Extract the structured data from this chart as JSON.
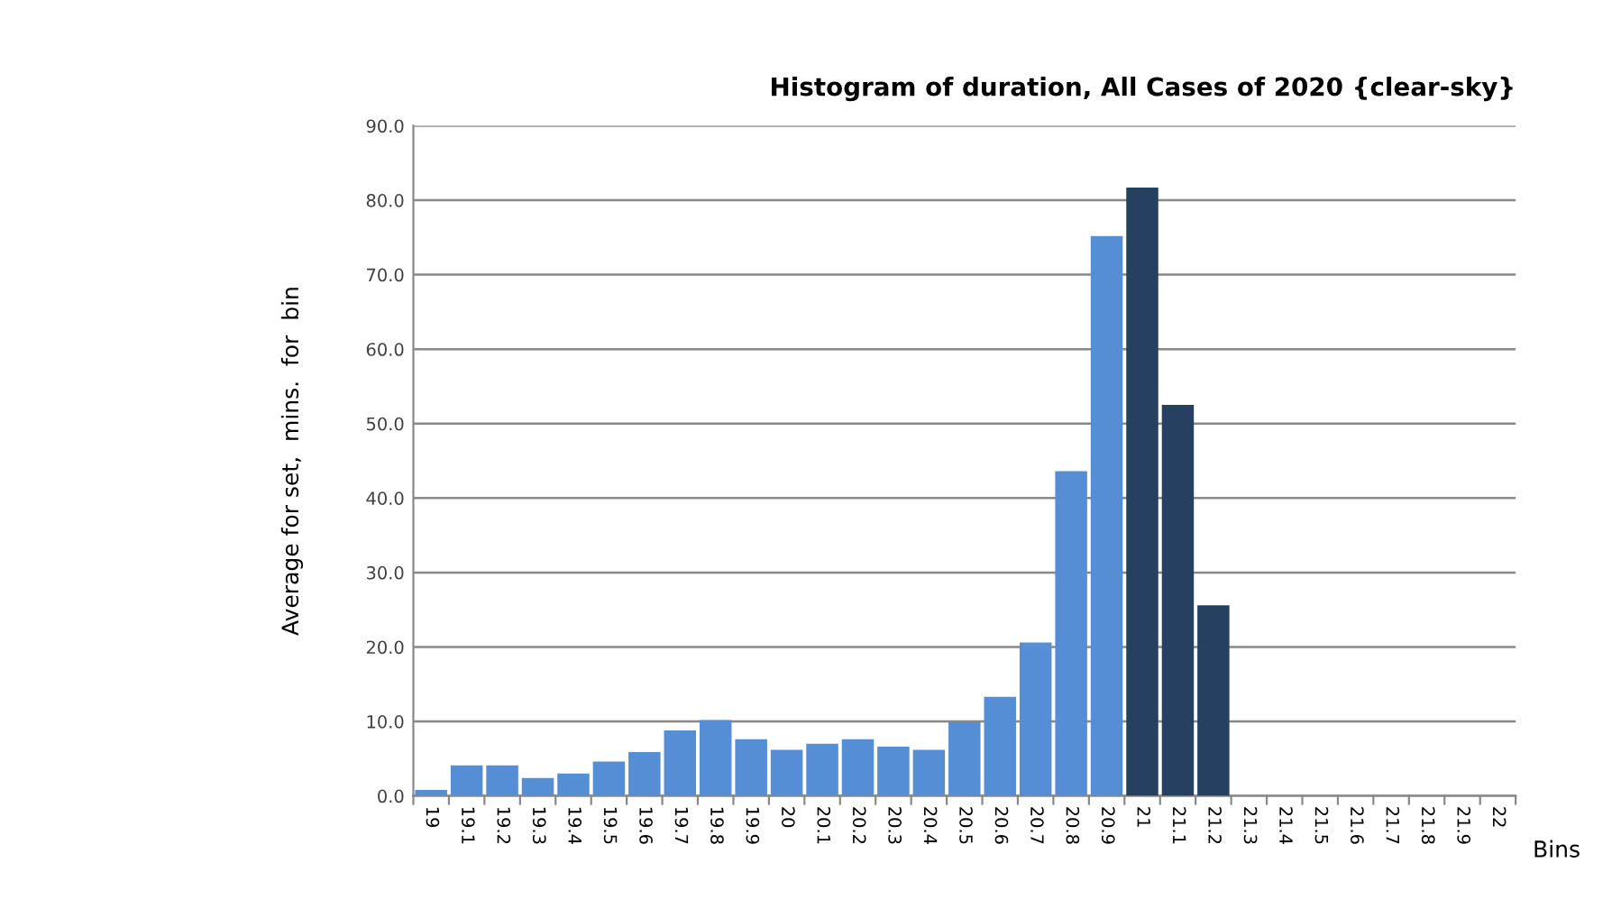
{
  "chart_data": {
    "type": "bar",
    "title": "Histogram of duration, All Cases of 2020 {clear-sky}",
    "xlabel": "Bins",
    "ylabel": "Average for set,  mins.  for  bin",
    "categories": [
      "19",
      "19.1",
      "19.2",
      "19.3",
      "19.4",
      "19.5",
      "19.6",
      "19.7",
      "19.8",
      "19.9",
      "20",
      "20.1",
      "20.2",
      "20.3",
      "20.4",
      "20.5",
      "20.6",
      "20.7",
      "20.8",
      "20.9",
      "21",
      "21.1",
      "21.2",
      "21.3",
      "21.4",
      "21.5",
      "21.6",
      "21.7",
      "21.8",
      "21.9",
      "22"
    ],
    "values": [
      0.8,
      4.1,
      4.1,
      2.4,
      3.0,
      4.6,
      5.9,
      8.8,
      10.2,
      7.6,
      6.2,
      7.0,
      7.6,
      6.6,
      6.2,
      9.9,
      13.3,
      20.6,
      43.6,
      75.2,
      81.7,
      52.5,
      25.6,
      0,
      0,
      0,
      0,
      0,
      0,
      0,
      0
    ],
    "colors": [
      "#558ed5",
      "#558ed5",
      "#558ed5",
      "#558ed5",
      "#558ed5",
      "#558ed5",
      "#558ed5",
      "#558ed5",
      "#558ed5",
      "#558ed5",
      "#558ed5",
      "#558ed5",
      "#558ed5",
      "#558ed5",
      "#558ed5",
      "#558ed5",
      "#558ed5",
      "#558ed5",
      "#558ed5",
      "#558ed5",
      "#254061",
      "#254061",
      "#254061",
      "#558ed5",
      "#558ed5",
      "#558ed5",
      "#558ed5",
      "#558ed5",
      "#558ed5",
      "#558ed5",
      "#558ed5"
    ],
    "ylim": [
      0,
      90
    ],
    "yticks": [
      {
        "value": 0,
        "label": "0.0"
      },
      {
        "value": 10,
        "label": "10.0"
      },
      {
        "value": 20,
        "label": "20.0"
      },
      {
        "value": 30,
        "label": "30.0"
      },
      {
        "value": 40,
        "label": "40.0"
      },
      {
        "value": 50,
        "label": "50.0"
      },
      {
        "value": 60,
        "label": "60.0"
      },
      {
        "value": 70,
        "label": "70.0"
      },
      {
        "value": 80,
        "label": "80.0"
      },
      {
        "value": 90,
        "label": "90.0"
      }
    ],
    "grid": "y",
    "legend": false
  }
}
